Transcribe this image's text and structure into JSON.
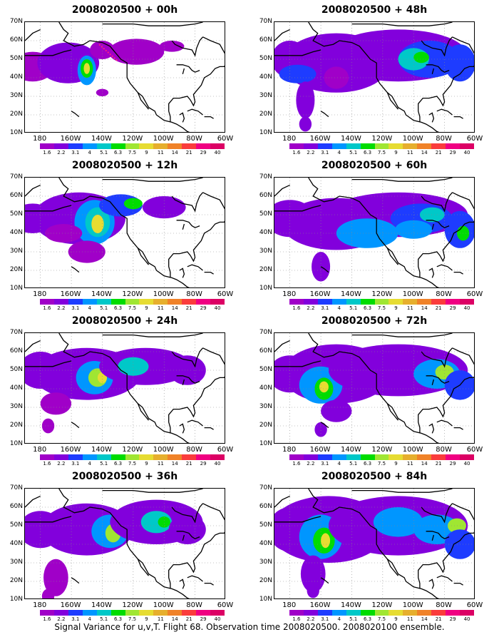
{
  "panels": [
    {
      "title": "2008020500 + 00h"
    },
    {
      "title": "2008020500 + 48h"
    },
    {
      "title": "2008020500 + 12h"
    },
    {
      "title": "2008020500 + 60h"
    },
    {
      "title": "2008020500 + 24h"
    },
    {
      "title": "2008020500 + 72h"
    },
    {
      "title": "2008020500 + 36h"
    },
    {
      "title": "2008020500 + 84h"
    }
  ],
  "lat_labels": [
    "70N",
    "60N",
    "50N",
    "40N",
    "30N",
    "20N",
    "10N"
  ],
  "lon_labels": [
    "180",
    "160W",
    "140W",
    "120W",
    "100W",
    "80W",
    "60W"
  ],
  "colorbar": {
    "labels": [
      "1.6",
      "2.2",
      "3.1",
      "4",
      "5.1",
      "6.3",
      "7.5",
      "9",
      "11",
      "14",
      "21",
      "29",
      "40"
    ],
    "colors": [
      "#a000c8",
      "#8200dc",
      "#1e3cff",
      "#0096ff",
      "#00c8c8",
      "#00dc00",
      "#a0e632",
      "#e6dc32",
      "#e6af2d",
      "#f08228",
      "#fa3c3c",
      "#f00082",
      "#dc0064"
    ]
  },
  "footer": "Signal Variance for u,v,T. Flight 68. Observation time 2008020500. 2008020100 ensemble."
}
